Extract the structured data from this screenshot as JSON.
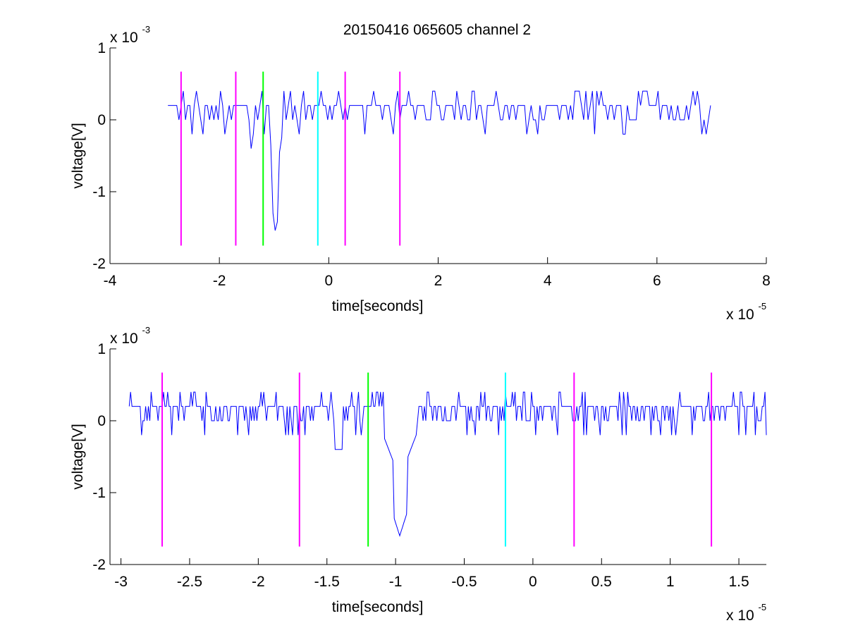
{
  "figure": {
    "title": "20150416 065605 channel 2"
  },
  "chart_data": [
    {
      "type": "line",
      "xlabel": "time[seconds]",
      "ylabel": "voltage[V]",
      "x_exponent": "x 10",
      "x_exponent_power": "-5",
      "y_exponent": "x 10",
      "y_exponent_power": "-3",
      "xlim": [
        -4,
        8
      ],
      "ylim": [
        -2,
        1
      ],
      "xticks": [
        -4,
        -2,
        0,
        2,
        4,
        6,
        8
      ],
      "xtick_labels": [
        "-4",
        "-2",
        "0",
        "2",
        "4",
        "6",
        "8"
      ],
      "yticks": [
        -2,
        -1,
        0,
        1
      ],
      "ytick_labels": [
        "-2",
        "-1",
        "0",
        "1"
      ],
      "grid": false,
      "series": [
        {
          "color": "#0000ff",
          "x_start": -2.94,
          "x_end": 7.0,
          "baseline": 0.2,
          "spike": {
            "x": -0.97,
            "y": -1.6
          },
          "y_min": -1.6,
          "y_max": 0.4
        }
      ],
      "vertical_markers": [
        {
          "x": -2.7,
          "color": "#ff00ff",
          "y_top": 0.67,
          "y_bottom": -1.75
        },
        {
          "x": -1.7,
          "color": "#ff00ff",
          "y_top": 0.67,
          "y_bottom": -1.75
        },
        {
          "x": -1.2,
          "color": "#00ff00",
          "y_top": 0.67,
          "y_bottom": -1.75
        },
        {
          "x": -0.2,
          "color": "#00ffff",
          "y_top": 0.67,
          "y_bottom": -1.75
        },
        {
          "x": 0.3,
          "color": "#ff00ff",
          "y_top": 0.67,
          "y_bottom": -1.75
        },
        {
          "x": 1.3,
          "color": "#ff00ff",
          "y_top": 0.67,
          "y_bottom": -1.75
        }
      ]
    },
    {
      "type": "line",
      "xlabel": "time[seconds]",
      "ylabel": "voltage[V]",
      "x_exponent": "x 10",
      "x_exponent_power": "-5",
      "y_exponent": "x 10",
      "y_exponent_power": "-3",
      "xlim": [
        -3.08,
        1.7
      ],
      "ylim": [
        -2,
        1
      ],
      "xticks": [
        -3,
        -2.5,
        -2,
        -1.5,
        -1,
        -0.5,
        0,
        0.5,
        1,
        1.5
      ],
      "xtick_labels": [
        "-3",
        "-2.5",
        "-2",
        "-1.5",
        "-1",
        "-0.5",
        "0",
        "0.5",
        "1",
        "1.5"
      ],
      "yticks": [
        -2,
        -1,
        0,
        1
      ],
      "ytick_labels": [
        "-2",
        "-1",
        "0",
        "1"
      ],
      "grid": false,
      "series": [
        {
          "color": "#0000ff",
          "x_start": -2.94,
          "x_end": 1.7,
          "baseline": 0.2,
          "spike": {
            "x": -0.97,
            "y": -1.6
          },
          "y_min": -1.6,
          "y_max": 0.4
        }
      ],
      "vertical_markers": [
        {
          "x": -2.7,
          "color": "#ff00ff",
          "y_top": 0.67,
          "y_bottom": -1.75
        },
        {
          "x": -1.7,
          "color": "#ff00ff",
          "y_top": 0.67,
          "y_bottom": -1.75
        },
        {
          "x": -1.2,
          "color": "#00ff00",
          "y_top": 0.67,
          "y_bottom": -1.75
        },
        {
          "x": -0.2,
          "color": "#00ffff",
          "y_top": 0.67,
          "y_bottom": -1.75
        },
        {
          "x": 0.3,
          "color": "#ff00ff",
          "y_top": 0.67,
          "y_bottom": -1.75
        },
        {
          "x": 1.3,
          "color": "#ff00ff",
          "y_top": 0.67,
          "y_bottom": -1.75
        }
      ]
    }
  ]
}
